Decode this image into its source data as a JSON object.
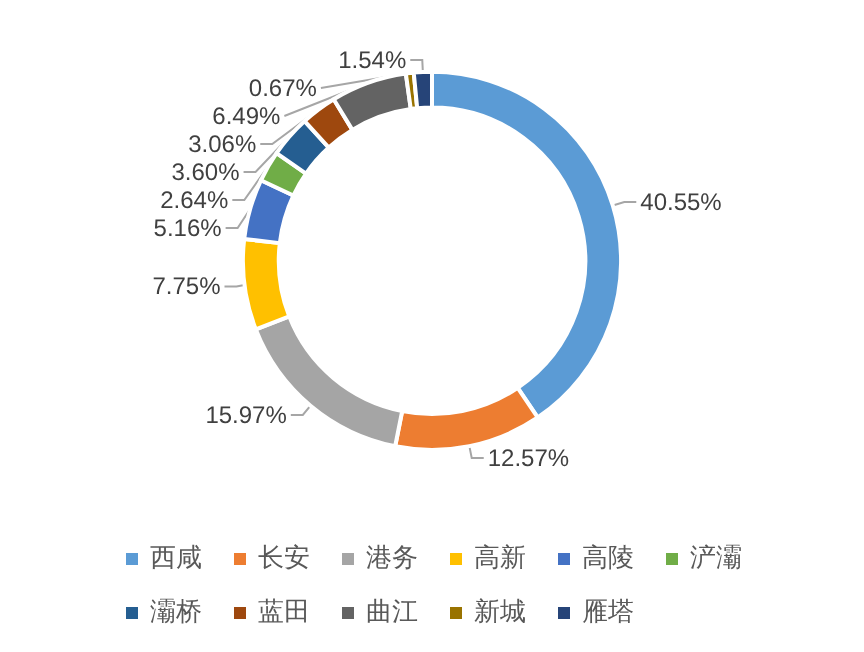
{
  "chart_data": {
    "type": "donut",
    "categories": [
      "西咸",
      "长安",
      "港务",
      "高新",
      "高陵",
      "浐灞",
      "灞桥",
      "蓝田",
      "曲江",
      "新城",
      "雁塔"
    ],
    "values": [
      40.55,
      12.57,
      15.97,
      7.75,
      5.16,
      2.64,
      3.6,
      3.06,
      6.49,
      0.67,
      1.54
    ],
    "value_labels": [
      "40.55%",
      "12.57%",
      "15.97%",
      "7.75%",
      "5.16%",
      "2.64%",
      "3.60%",
      "3.06%",
      "6.49%",
      "0.67%",
      "1.54%"
    ],
    "colors": [
      "#5b9bd5",
      "#ed7d31",
      "#a5a5a5",
      "#ffc000",
      "#4472c4",
      "#70ad47",
      "#255e91",
      "#9e480e",
      "#636363",
      "#997300",
      "#264478"
    ],
    "legend": "bottom"
  }
}
